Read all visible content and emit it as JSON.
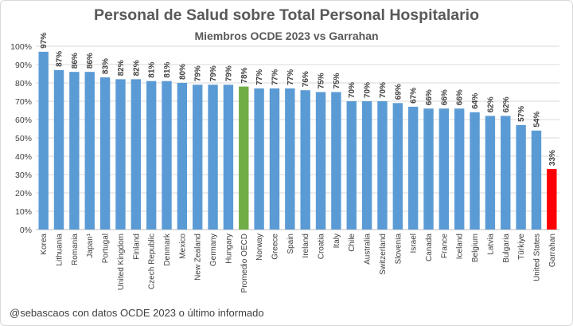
{
  "chart_data": {
    "type": "bar",
    "title": "Personal de Salud sobre Total Personal Hospitalario",
    "subtitle": "Miembros OCDE 2023 vs Garrahan",
    "xlabel": "",
    "ylabel": "",
    "ylim": [
      0,
      100
    ],
    "yticks": [
      "0%",
      "10%",
      "20%",
      "30%",
      "40%",
      "50%",
      "60%",
      "70%",
      "80%",
      "90%",
      "100%"
    ],
    "grid": true,
    "categories": [
      "Korea",
      "Lithuania",
      "Romania",
      "Japan¹",
      "Portugal",
      "United Kingdom",
      "Finland",
      "Czech Republic",
      "Denmark",
      "Mexico",
      "New Zealand",
      "Germany",
      "Hungary",
      "Promedio OECD",
      "Norway",
      "Greece",
      "Spain",
      "Ireland",
      "Croatia",
      "Italy",
      "Chile",
      "Australia",
      "Switzerland",
      "Slovenia",
      "Israel",
      "Canada",
      "France",
      "Iceland",
      "Belgium",
      "Latvia",
      "Bulgaria",
      "Türkiye",
      "United States",
      "Garrahan"
    ],
    "values": [
      97,
      87,
      86,
      86,
      83,
      82,
      82,
      81,
      81,
      80,
      79,
      79,
      79,
      78,
      77,
      77,
      77,
      76,
      75,
      75,
      70,
      70,
      70,
      69,
      67,
      66,
      66,
      66,
      64,
      62,
      62,
      57,
      54,
      33
    ],
    "labels": [
      "97%",
      "87%",
      "86%",
      "86%",
      "83%",
      "82%",
      "82%",
      "81%",
      "81%",
      "80%",
      "79%",
      "79%",
      "79%",
      "78%",
      "77%",
      "77%",
      "77%",
      "76%",
      "75%",
      "75%",
      "70%",
      "70%",
      "70%",
      "69%",
      "67%",
      "66%",
      "66%",
      "66%",
      "64%",
      "62%",
      "62%",
      "57%",
      "54%",
      "33%"
    ],
    "colors": {
      "default": "#5b9bd5",
      "Promedio OECD": "#70ad47",
      "Garrahan": "#ff0000"
    }
  },
  "footer": "@sebascaos con datos OCDE 2023 o último informado"
}
